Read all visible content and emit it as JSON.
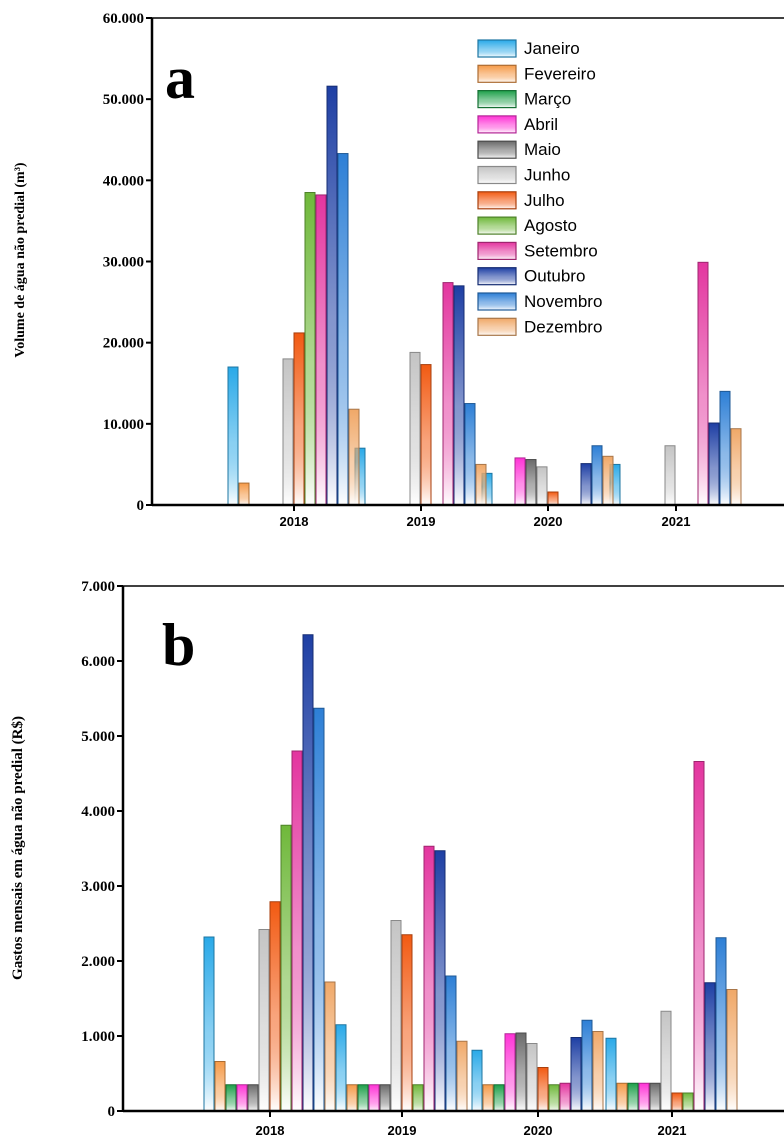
{
  "months": [
    "Janeiro",
    "Fevereiro",
    "Março",
    "Abril",
    "Maio",
    "Junho",
    "Julho",
    "Agosto",
    "Setembro",
    "Outubro",
    "Novembro",
    "Dezembro"
  ],
  "colors": [
    "#29a9e8",
    "#f59a48",
    "#1ea04a",
    "#ff33d6",
    "#6b6b6b",
    "#c4c4c4",
    "#f25a12",
    "#6fb83a",
    "#e3359f",
    "#1e3fa4",
    "#2d7fd6",
    "#f0a868"
  ],
  "chart_data": [
    {
      "type": "bar",
      "panel_label": "a",
      "ylabel": "Volume de água não predial (m³)",
      "ylim": [
        0,
        60000
      ],
      "yticks": [
        "0",
        "10.000",
        "20.000",
        "30.000",
        "40.000",
        "50.000",
        "60.000"
      ],
      "categories": [
        "2018",
        "2019",
        "2020",
        "2021"
      ],
      "legend": "top-center",
      "series": [
        {
          "name": "Janeiro",
          "values": [
            17000,
            7000,
            3900,
            5000
          ]
        },
        {
          "name": "Fevereiro",
          "values": [
            2700,
            0,
            0,
            0
          ]
        },
        {
          "name": "Março",
          "values": [
            0,
            0,
            0,
            0
          ]
        },
        {
          "name": "Abril",
          "values": [
            0,
            0,
            5800,
            0
          ]
        },
        {
          "name": "Maio",
          "values": [
            0,
            0,
            5600,
            0
          ]
        },
        {
          "name": "Junho",
          "values": [
            18000,
            18800,
            4700,
            7300
          ]
        },
        {
          "name": "Julho",
          "values": [
            21200,
            17300,
            1600,
            0
          ]
        },
        {
          "name": "Agosto",
          "values": [
            38500,
            0,
            0,
            0
          ]
        },
        {
          "name": "Setembro",
          "values": [
            38200,
            27400,
            0,
            29900
          ]
        },
        {
          "name": "Outubro",
          "values": [
            51600,
            27000,
            5100,
            10100
          ]
        },
        {
          "name": "Novembro",
          "values": [
            43300,
            12500,
            7300,
            14000
          ]
        },
        {
          "name": "Dezembro",
          "values": [
            11800,
            5000,
            6000,
            9400
          ]
        }
      ]
    },
    {
      "type": "bar",
      "panel_label": "b",
      "ylabel": "Gastos mensais em água não predial (R$)",
      "ylim": [
        0,
        7000
      ],
      "yticks": [
        "0",
        "1.000",
        "2.000",
        "3.000",
        "4.000",
        "5.000",
        "6.000",
        "7.000"
      ],
      "categories": [
        "2018",
        "2019",
        "2020",
        "2021"
      ],
      "series": [
        {
          "name": "Janeiro",
          "values": [
            2320,
            1150,
            810,
            970
          ]
        },
        {
          "name": "Fevereiro",
          "values": [
            660,
            350,
            350,
            370
          ]
        },
        {
          "name": "Março",
          "values": [
            350,
            350,
            350,
            370
          ]
        },
        {
          "name": "Abril",
          "values": [
            350,
            350,
            1030,
            370
          ]
        },
        {
          "name": "Maio",
          "values": [
            350,
            350,
            1040,
            370
          ]
        },
        {
          "name": "Junho",
          "values": [
            2420,
            2540,
            900,
            1330
          ]
        },
        {
          "name": "Julho",
          "values": [
            2790,
            2350,
            580,
            240
          ]
        },
        {
          "name": "Agosto",
          "values": [
            3810,
            350,
            350,
            240
          ]
        },
        {
          "name": "Setembro",
          "values": [
            4800,
            3530,
            370,
            4660
          ]
        },
        {
          "name": "Outubro",
          "values": [
            6350,
            3470,
            980,
            1710
          ]
        },
        {
          "name": "Novembro",
          "values": [
            5370,
            1800,
            1210,
            2310
          ]
        },
        {
          "name": "Dezembro",
          "values": [
            1720,
            930,
            1060,
            1620
          ]
        }
      ]
    }
  ]
}
